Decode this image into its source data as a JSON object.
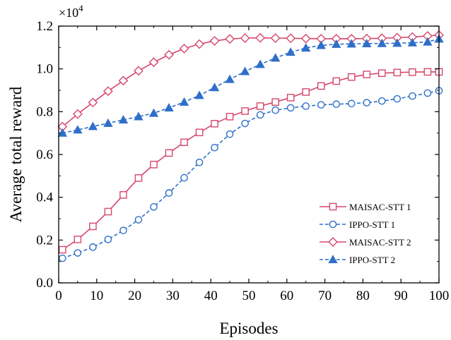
{
  "chart_data": {
    "type": "line",
    "xlabel": "Episodes",
    "ylabel": "Average total reward",
    "y_multiplier": "×10",
    "y_multiplier_exp": "4",
    "xlim": [
      0,
      100
    ],
    "ylim": [
      0,
      1.2
    ],
    "x_ticks": [
      0,
      10,
      20,
      30,
      40,
      50,
      60,
      70,
      80,
      90,
      100
    ],
    "y_ticks": [
      0.0,
      0.2,
      0.4,
      0.6,
      0.8,
      1.0,
      1.2
    ],
    "y_tick_labels": [
      "0.0",
      "0.2",
      "0.4",
      "0.6",
      "0.8",
      "1.0",
      "1.2"
    ],
    "grid": false,
    "legend_position": "lower-right",
    "x": [
      1,
      5,
      9,
      13,
      17,
      21,
      25,
      29,
      33,
      37,
      41,
      45,
      49,
      53,
      57,
      61,
      65,
      69,
      73,
      77,
      81,
      85,
      89,
      93,
      97,
      100
    ],
    "series": [
      {
        "name": "MAISAC-STT 1",
        "color": "#d6476b",
        "dash": "solid",
        "marker": "square-open",
        "values": [
          0.155,
          0.203,
          0.264,
          0.333,
          0.411,
          0.49,
          0.553,
          0.607,
          0.657,
          0.703,
          0.744,
          0.777,
          0.803,
          0.826,
          0.845,
          0.866,
          0.892,
          0.92,
          0.943,
          0.962,
          0.974,
          0.98,
          0.983,
          0.985,
          0.986,
          0.986
        ]
      },
      {
        "name": "IPPO-STT 1",
        "color": "#2f6fc9",
        "dash": "dashed",
        "marker": "circle-open",
        "values": [
          0.115,
          0.14,
          0.167,
          0.203,
          0.245,
          0.295,
          0.355,
          0.42,
          0.491,
          0.563,
          0.632,
          0.695,
          0.745,
          0.785,
          0.807,
          0.818,
          0.826,
          0.832,
          0.835,
          0.838,
          0.842,
          0.85,
          0.86,
          0.873,
          0.887,
          0.898
        ]
      },
      {
        "name": "MAISAC-STT 2",
        "color": "#d6476b",
        "dash": "solid",
        "marker": "diamond-open",
        "values": [
          0.73,
          0.789,
          0.843,
          0.896,
          0.945,
          0.991,
          1.031,
          1.066,
          1.095,
          1.116,
          1.131,
          1.14,
          1.144,
          1.145,
          1.144,
          1.143,
          1.142,
          1.141,
          1.141,
          1.141,
          1.142,
          1.143,
          1.146,
          1.149,
          1.154,
          1.158
        ]
      },
      {
        "name": "IPPO-STT 2",
        "color": "#2f6fc9",
        "dash": "dashed",
        "marker": "triangle-filled",
        "values": [
          0.7,
          0.715,
          0.731,
          0.746,
          0.762,
          0.777,
          0.793,
          0.818,
          0.845,
          0.876,
          0.913,
          0.951,
          0.988,
          1.021,
          1.051,
          1.078,
          1.098,
          1.11,
          1.115,
          1.117,
          1.118,
          1.119,
          1.12,
          1.122,
          1.126,
          1.14
        ]
      }
    ]
  }
}
